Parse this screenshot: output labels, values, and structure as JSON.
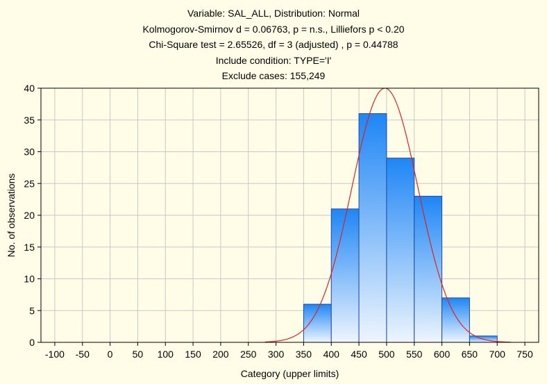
{
  "chart_data": {
    "type": "bar",
    "title_lines": [
      "Variable: SAL_ALL, Distribution: Normal",
      "Kolmogorov-Smirnov d = 0.06763, p = n.s., Lilliefors p < 0.20",
      "Chi-Square test = 2.65526, df = 3 (adjusted) , p = 0.44788",
      "Include condition: TYPE='I'",
      "Exclude cases: 155,249"
    ],
    "xlabel": "Category (upper limits)",
    "ylabel": "No. of observations",
    "xlim": [
      -125,
      775
    ],
    "ylim": [
      0,
      40
    ],
    "x_ticks": [
      -100,
      -50,
      0,
      50,
      100,
      150,
      200,
      250,
      300,
      350,
      400,
      450,
      500,
      550,
      600,
      650,
      700,
      750
    ],
    "y_ticks": [
      0,
      5,
      10,
      15,
      20,
      25,
      30,
      35,
      40
    ],
    "bin_width": 50,
    "bins": [
      {
        "upper": 400,
        "count": 6
      },
      {
        "upper": 450,
        "count": 21
      },
      {
        "upper": 500,
        "count": 36
      },
      {
        "upper": 550,
        "count": 29
      },
      {
        "upper": 600,
        "count": 23
      },
      {
        "upper": 650,
        "count": 7
      },
      {
        "upper": 700,
        "count": 1
      }
    ],
    "normal_fit": {
      "mean": 497,
      "sd": 60,
      "peak": 40,
      "x_range": [
        280,
        725
      ]
    },
    "grid": true,
    "colors": {
      "background": "#fffde8",
      "bar_top": "#1e86f5",
      "bar_bottom": "#eef5fe",
      "bar_edge": "#1f49a8",
      "curve": "#e02020",
      "grid": "#c8c8c8"
    }
  }
}
